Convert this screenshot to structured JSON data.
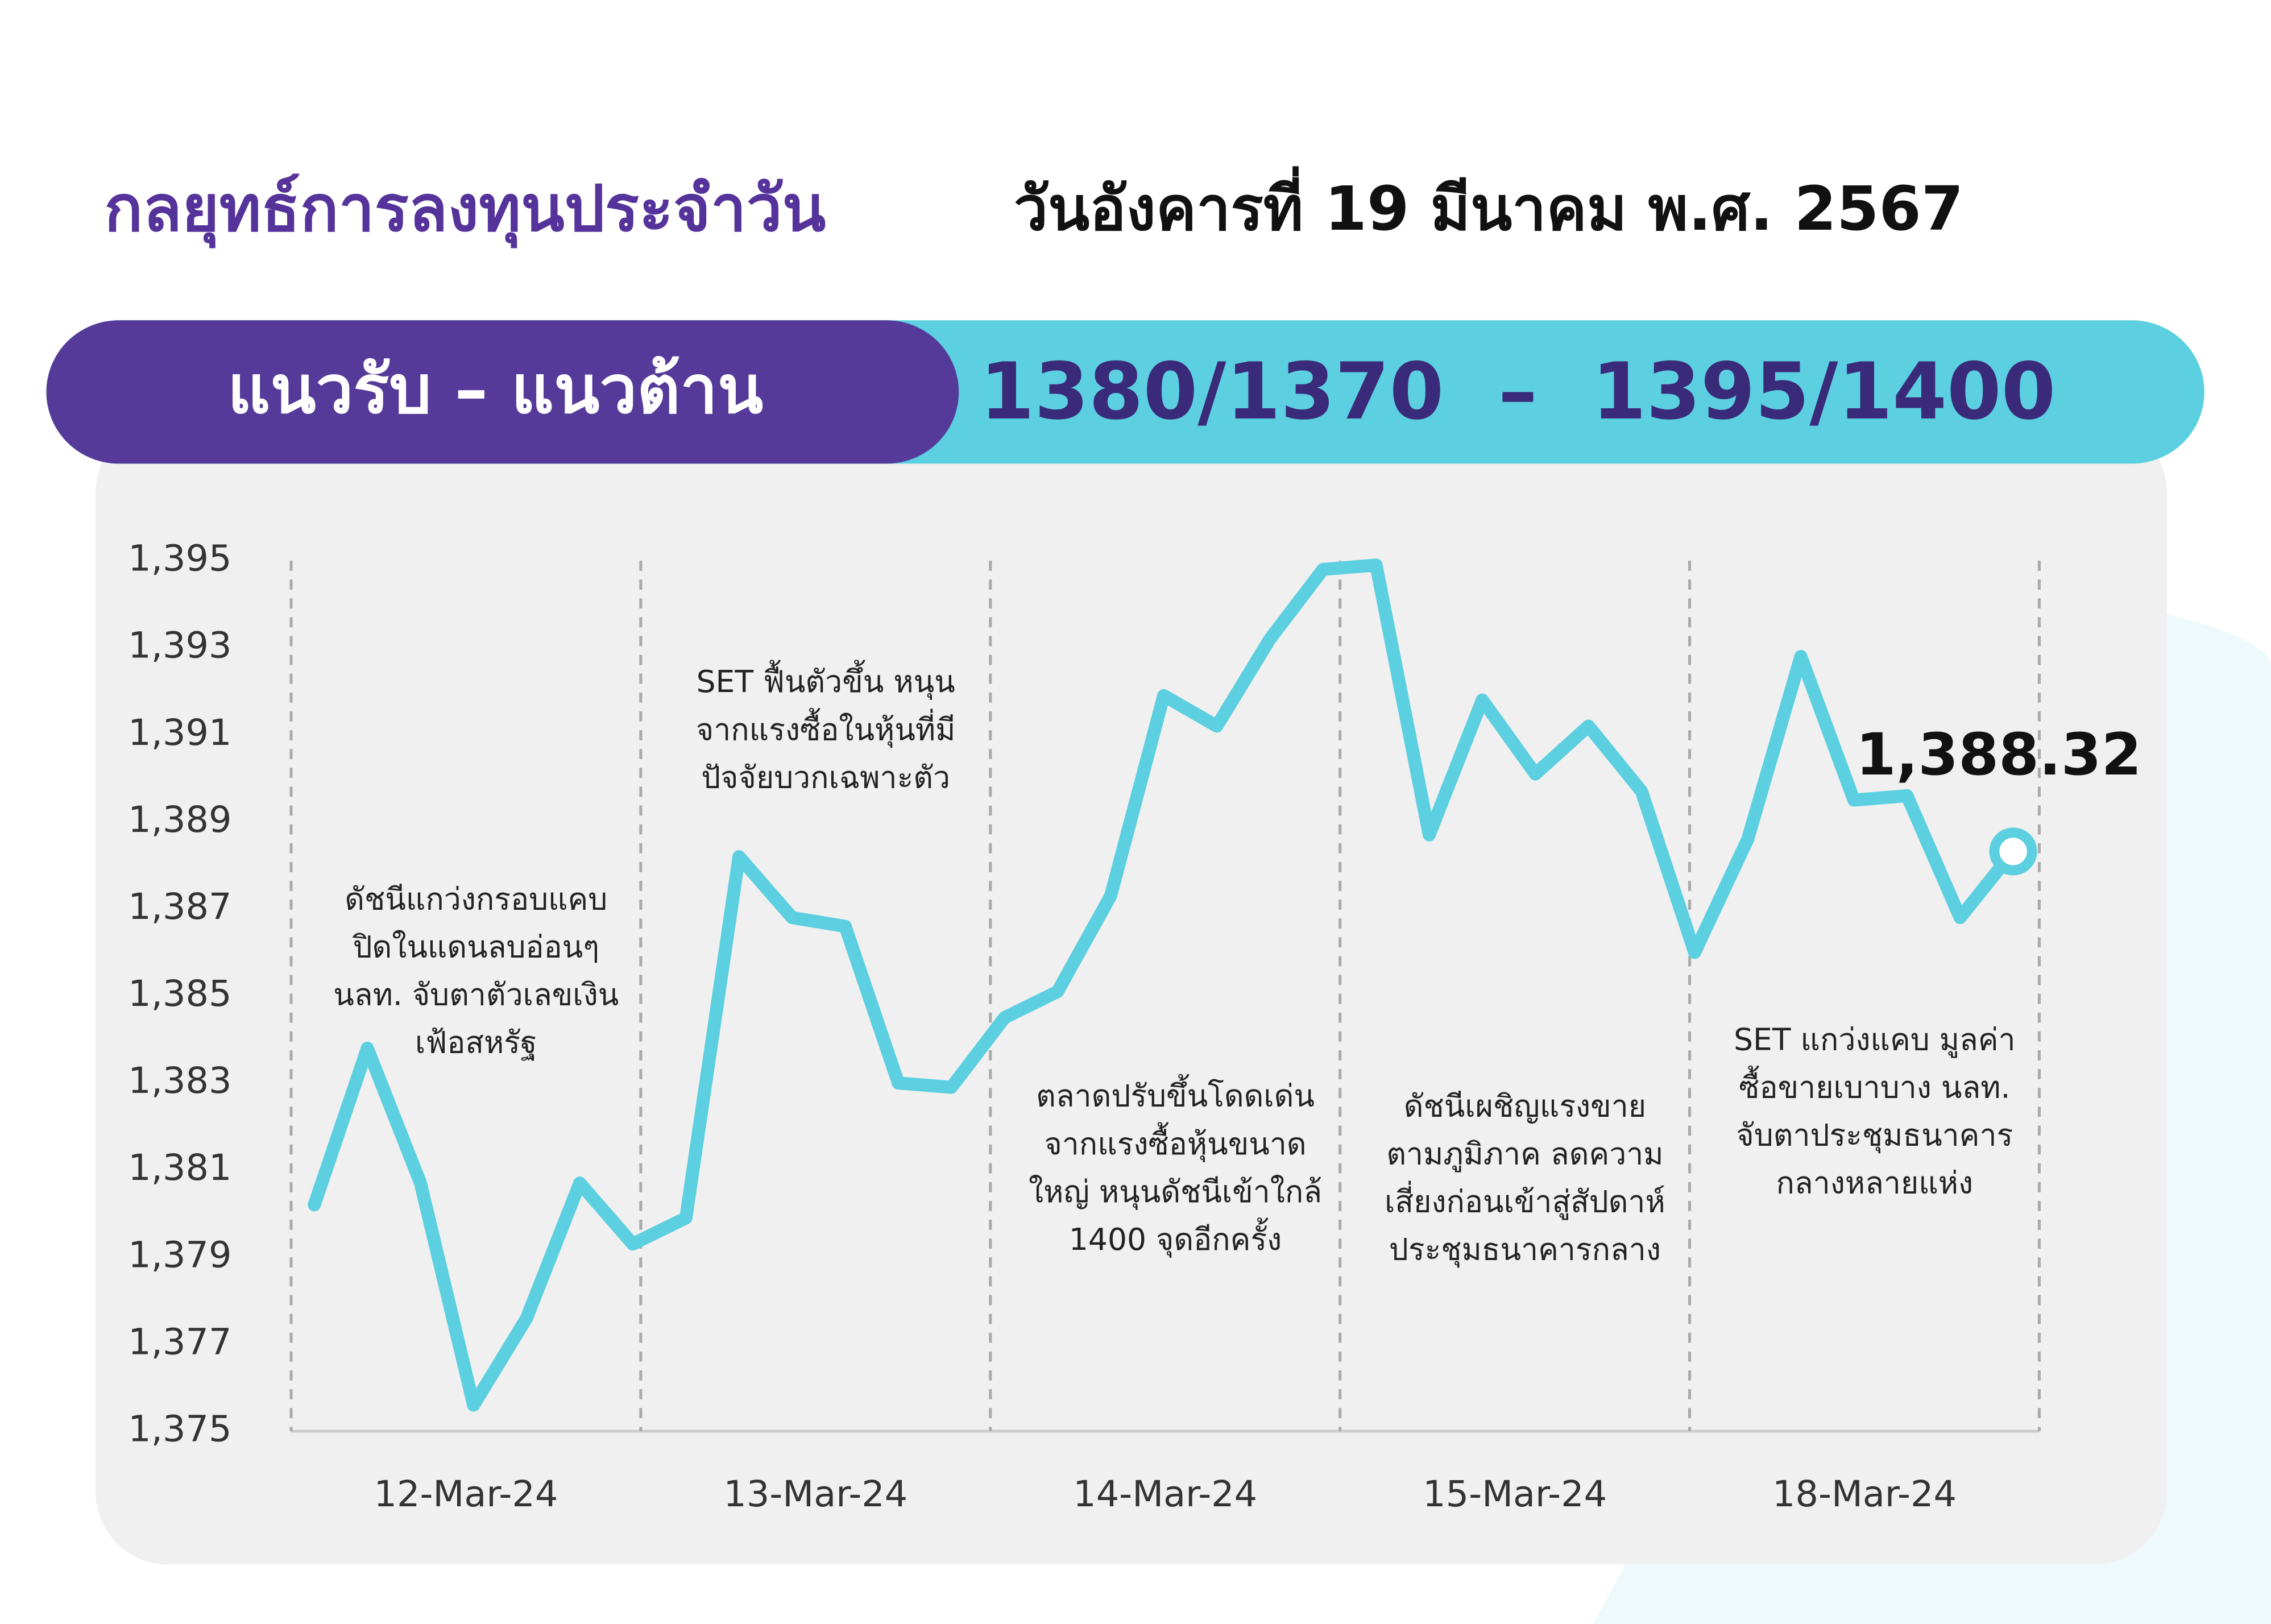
{
  "header": {
    "title": "กลยุทธ์การลงทุนประจำวัน",
    "date": "วันอังคารที่ 19 มีนาคม พ.ศ. 2567",
    "levels_label": "แนวรับ – แนวต้าน",
    "levels": "1380/1370  –  1395/1400"
  },
  "chart_data": {
    "type": "line",
    "day_labels": [
      "12-Mar-24",
      "13-Mar-24",
      "14-Mar-24",
      "15-Mar-24",
      "18-Mar-24"
    ],
    "series": [
      {
        "name": "SET",
        "color": "#5ccfe0",
        "values": [
          1380.2,
          1383.8,
          1380.7,
          1375.6,
          1377.6,
          1380.7,
          1379.3,
          1379.9,
          1388.2,
          1386.8,
          1386.6,
          1383.0,
          1382.9,
          1384.5,
          1385.1,
          1387.3,
          1391.9,
          1391.2,
          1393.2,
          1394.8,
          1394.9,
          1388.7,
          1391.8,
          1390.1,
          1391.2,
          1389.7,
          1386.0,
          1388.6,
          1392.8,
          1389.5,
          1389.6,
          1386.8,
          1388.32
        ],
        "value_labels": [
          null,
          null,
          null,
          null,
          null,
          null,
          null,
          null,
          null,
          null,
          null,
          null,
          null,
          null,
          null,
          null,
          null,
          null,
          null,
          null,
          null,
          null,
          null,
          null,
          null,
          null,
          null,
          null,
          null,
          null,
          null,
          null,
          "1,388.32"
        ]
      }
    ],
    "ylim": [
      1375,
      1395
    ],
    "yticks": [
      {
        "value": 1375,
        "label": "1,375"
      },
      {
        "value": 1377,
        "label": "1,377"
      },
      {
        "value": 1379,
        "label": "1,379"
      },
      {
        "value": 1381,
        "label": "1,381"
      },
      {
        "value": 1383,
        "label": "1,383"
      },
      {
        "value": 1385,
        "label": "1,385"
      },
      {
        "value": 1387,
        "label": "1,387"
      },
      {
        "value": 1389,
        "label": "1,389"
      },
      {
        "value": 1391,
        "label": "1,391"
      },
      {
        "value": 1393,
        "label": "1,393"
      },
      {
        "value": 1395,
        "label": "1,395"
      }
    ],
    "annotations": [
      [
        "ดัชนีแกว่งกรอบแคบ",
        "ปิดในแดนลบอ่อนๆ",
        "นลท. จับตาตัวเลขเงิน",
        "เฟ้อสหรัฐ"
      ],
      [
        "SET ฟื้นตัวขึ้น หนุน",
        "จากแรงซื้อในหุ้นที่มี",
        "ปัจจัยบวกเฉพาะตัว"
      ],
      [
        "ตลาดปรับขึ้นโดดเด่น",
        "จากแรงซื้อหุ้นขนาด",
        "ใหญ่ หนุนดัชนีเข้าใกล้",
        "1400 จุดอีกครั้ง"
      ],
      [
        "ดัชนีเผชิญแรงขาย",
        "ตามภูมิภาค ลดความ",
        "เสี่ยงก่อนเข้าสู่สัปดาห์",
        "ประชุมธนาคารกลาง"
      ],
      [
        "SET แกว่งแคบ มูลค่า",
        "ซื้อขายเบาบาง นลท.",
        "จับตาประชุมธนาคาร",
        "กลางหลายแห่ง"
      ]
    ]
  }
}
